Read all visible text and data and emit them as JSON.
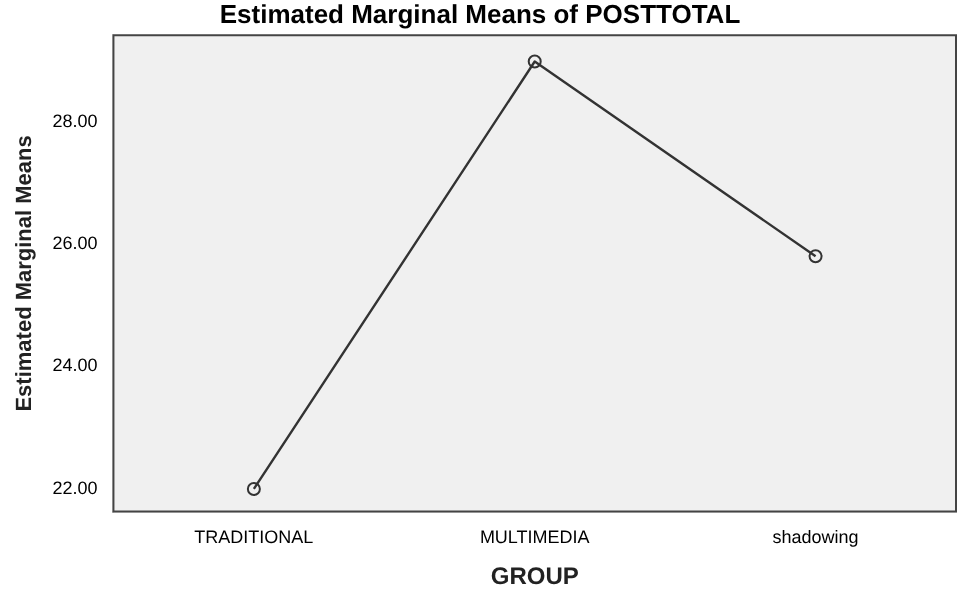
{
  "chart_data": {
    "type": "line",
    "title": "Estimated Marginal Means of POSTTOTAL",
    "xlabel": "GROUP",
    "ylabel": "Estimated Marginal Means",
    "categories": [
      "TRADITIONAL",
      "MULTIMEDIA",
      "shadowing"
    ],
    "values": [
      22.0,
      28.98,
      25.8
    ],
    "color": "#333333",
    "ylim": [
      21.63,
      29.41
    ],
    "yticks": [
      {
        "value": 22,
        "label": "22.00"
      },
      {
        "value": 24,
        "label": "24.00"
      },
      {
        "value": 26,
        "label": "26.00"
      },
      {
        "value": 28,
        "label": "28.00"
      }
    ],
    "grid": false,
    "legend": false,
    "marker": "circle",
    "line_style": "solid"
  }
}
